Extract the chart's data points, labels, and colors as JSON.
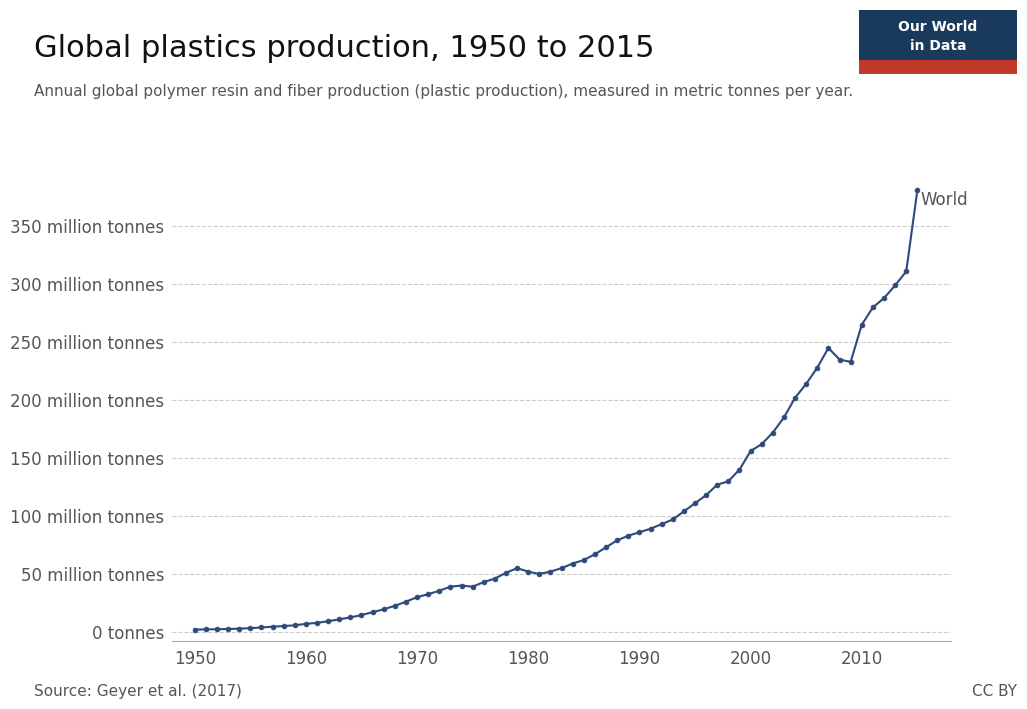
{
  "title": "Global plastics production, 1950 to 2015",
  "subtitle": "Annual global polymer resin and fiber production (plastic production), measured in metric tonnes per year.",
  "source": "Source: Geyer et al. (2017)",
  "license": "CC BY",
  "logo_bg": "#1a3a5c",
  "logo_red": "#c0392b",
  "line_color": "#2d4a7a",
  "bg_color": "#ffffff",
  "grid_color": "#cccccc",
  "label_color": "#555555",
  "text_color": "#111111",
  "years": [
    1950,
    1951,
    1952,
    1953,
    1954,
    1955,
    1956,
    1957,
    1958,
    1959,
    1960,
    1961,
    1962,
    1963,
    1964,
    1965,
    1966,
    1967,
    1968,
    1969,
    1970,
    1971,
    1972,
    1973,
    1974,
    1975,
    1976,
    1977,
    1978,
    1979,
    1980,
    1981,
    1982,
    1983,
    1984,
    1985,
    1986,
    1987,
    1988,
    1989,
    1990,
    1991,
    1992,
    1993,
    1994,
    1995,
    1996,
    1997,
    1998,
    1999,
    2000,
    2001,
    2002,
    2003,
    2004,
    2005,
    2006,
    2007,
    2008,
    2009,
    2010,
    2011,
    2012,
    2013,
    2014,
    2015
  ],
  "values_mt": [
    2,
    2.1,
    2.3,
    2.5,
    2.8,
    3.2,
    3.8,
    4.5,
    5.0,
    5.7,
    6.9,
    7.8,
    9.2,
    10.8,
    12.5,
    14.5,
    17.0,
    19.5,
    22.5,
    26.0,
    30.0,
    32.5,
    35.5,
    39.0,
    40.0,
    39.0,
    43.0,
    46.0,
    51.0,
    55.0,
    52.0,
    50.0,
    52.0,
    55.0,
    59.0,
    62.0,
    67.0,
    73.0,
    79.0,
    83.0,
    86.0,
    89.0,
    93.0,
    97.0,
    104.0,
    111.0,
    118.0,
    127.0,
    130.0,
    140.0,
    156.0,
    162.0,
    172.0,
    185.0,
    202.0,
    214.0,
    228.0,
    245.0,
    235.0,
    233.0,
    265.0,
    280.0,
    288.0,
    299.0,
    311.0,
    381.0
  ],
  "xlim": [
    1948,
    2018
  ],
  "ylim": [
    -8,
    410
  ],
  "xticks": [
    1950,
    1960,
    1970,
    1980,
    1990,
    2000,
    2010
  ],
  "xtick_labels": [
    "1950",
    "1960",
    "1970",
    "1980",
    "1990",
    "2000",
    "2010"
  ],
  "yticks_mt": [
    0,
    50,
    100,
    150,
    200,
    250,
    300,
    350
  ],
  "ytick_labels": [
    "0 tonnes",
    "50 million tonnes",
    "100 million tonnes",
    "150 million tonnes",
    "200 million tonnes",
    "250 million tonnes",
    "300 million tonnes",
    "350 million tonnes"
  ],
  "world_label": "World",
  "title_fontsize": 22,
  "subtitle_fontsize": 11,
  "tick_fontsize": 12,
  "source_fontsize": 11,
  "world_fontsize": 12
}
